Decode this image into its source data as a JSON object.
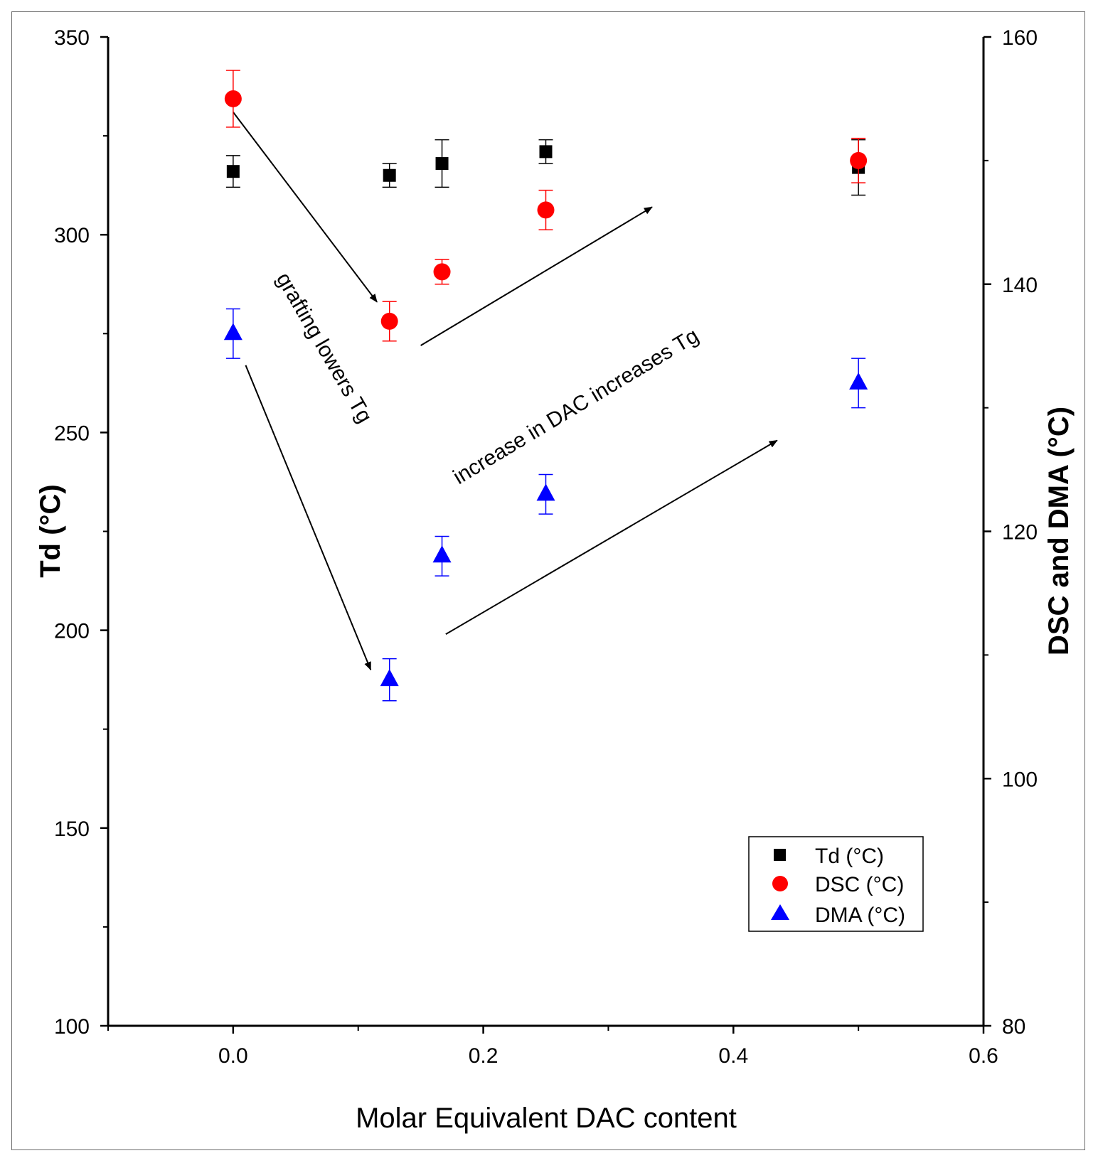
{
  "chart_data": {
    "type": "scatter",
    "xlabel": "Molar Equivalent DAC content",
    "ylabel_left": "Td (°C)",
    "ylabel_right": "DSC and DMA (°C)",
    "xlim": [
      -0.1,
      0.6
    ],
    "ylim_left": [
      100,
      350
    ],
    "ylim_right": [
      80,
      160
    ],
    "x_ticks": [
      {
        "value": 0.0,
        "label": "0.0"
      },
      {
        "value": 0.2,
        "label": "0.2"
      },
      {
        "value": 0.4,
        "label": "0.4"
      },
      {
        "value": 0.6,
        "label": "0.6"
      }
    ],
    "x_minor_ticks": [
      -0.1,
      0.1,
      0.3,
      0.5
    ],
    "y_left_ticks": [
      {
        "value": 100,
        "label": "100"
      },
      {
        "value": 150,
        "label": "150"
      },
      {
        "value": 200,
        "label": "200"
      },
      {
        "value": 250,
        "label": "250"
      },
      {
        "value": 300,
        "label": "300"
      },
      {
        "value": 350,
        "label": "350"
      }
    ],
    "y_left_minor_ticks": [
      125,
      175,
      225,
      275,
      325
    ],
    "y_right_ticks": [
      {
        "value": 80,
        "label": "80"
      },
      {
        "value": 100,
        "label": "100"
      },
      {
        "value": 120,
        "label": "120"
      },
      {
        "value": 140,
        "label": "140"
      },
      {
        "value": 160,
        "label": "160"
      }
    ],
    "y_right_minor_ticks": [
      90,
      110,
      130,
      150
    ],
    "series": [
      {
        "name": "Td (°C)",
        "axis": "left",
        "marker": "square",
        "color": "#000000",
        "points": [
          {
            "x": 0.0,
            "y": 316,
            "err": 4
          },
          {
            "x": 0.125,
            "y": 315,
            "err": 3
          },
          {
            "x": 0.167,
            "y": 318,
            "err": 6
          },
          {
            "x": 0.25,
            "y": 321,
            "err": 3
          },
          {
            "x": 0.5,
            "y": 317,
            "err": 7
          }
        ]
      },
      {
        "name": "DSC (°C)",
        "axis": "right",
        "marker": "circle",
        "color": "#ff0000",
        "points": [
          {
            "x": 0.0,
            "y": 155,
            "err": 2.3
          },
          {
            "x": 0.125,
            "y": 137,
            "err": 1.6
          },
          {
            "x": 0.167,
            "y": 141,
            "err": 1.0
          },
          {
            "x": 0.25,
            "y": 146,
            "err": 1.6
          },
          {
            "x": 0.5,
            "y": 150,
            "err": 1.8
          }
        ]
      },
      {
        "name": "DMA (°C)",
        "axis": "right",
        "marker": "triangle",
        "color": "#0000ff",
        "points": [
          {
            "x": 0.0,
            "y": 136,
            "err": 2.0
          },
          {
            "x": 0.125,
            "y": 108,
            "err": 1.7
          },
          {
            "x": 0.167,
            "y": 118,
            "err": 1.6
          },
          {
            "x": 0.25,
            "y": 123,
            "err": 1.6
          },
          {
            "x": 0.5,
            "y": 132,
            "err": 2.0
          }
        ]
      }
    ],
    "annotations": [
      {
        "id": "grafting",
        "text": "grafting lowers Tg"
      },
      {
        "id": "dac",
        "text": "increase in DAC increases Tg"
      }
    ],
    "arrows": [
      {
        "id": "dsc-down",
        "from": {
          "x": 0.0,
          "y": 331,
          "axis": "left"
        },
        "to": {
          "x": 0.115,
          "y": 283,
          "axis": "left"
        }
      },
      {
        "id": "dsc-up",
        "from": {
          "x": 0.15,
          "y": 272,
          "axis": "left"
        },
        "to": {
          "x": 0.335,
          "y": 307,
          "axis": "left"
        }
      },
      {
        "id": "dma-down",
        "from": {
          "x": 0.01,
          "y": 267,
          "axis": "left"
        },
        "to": {
          "x": 0.11,
          "y": 190,
          "axis": "left"
        }
      },
      {
        "id": "dma-up",
        "from": {
          "x": 0.17,
          "y": 199,
          "axis": "left"
        },
        "to": {
          "x": 0.435,
          "y": 248,
          "axis": "left"
        }
      }
    ],
    "legend_position": "bottom-right"
  }
}
